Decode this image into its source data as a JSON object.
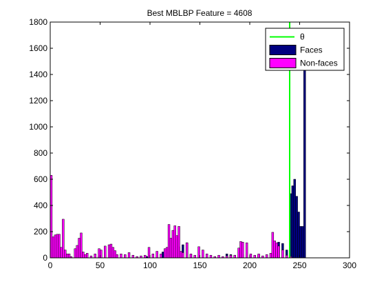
{
  "chart_data": {
    "type": "bar",
    "title": "Best MBLBP Feature = 4608",
    "xlabel": "",
    "ylabel": "",
    "xlim": [
      0,
      300
    ],
    "ylim": [
      0,
      1800
    ],
    "xticks": [
      0,
      50,
      100,
      150,
      200,
      250,
      300
    ],
    "yticks": [
      0,
      200,
      400,
      600,
      800,
      1000,
      1200,
      1400,
      1600,
      1800
    ],
    "grid": false,
    "legend": {
      "location": "top-right",
      "entries": [
        {
          "label": "θ",
          "kind": "line",
          "color": "#00ff00"
        },
        {
          "label": "Faces",
          "kind": "bar",
          "color": "#000080"
        },
        {
          "label": "Non-faces",
          "kind": "bar",
          "color": "#ff00ff"
        }
      ]
    },
    "threshold": {
      "name": "θ",
      "x": 240,
      "color": "#00ff00"
    },
    "series": [
      {
        "name": "Faces",
        "color": "#000080",
        "points": [
          [
            0,
            30
          ],
          [
            16,
            15
          ],
          [
            32,
            20
          ],
          [
            48,
            10
          ],
          [
            64,
            15
          ],
          [
            96,
            10
          ],
          [
            112,
            45
          ],
          [
            116,
            45
          ],
          [
            120,
            55
          ],
          [
            124,
            65
          ],
          [
            128,
            85
          ],
          [
            132,
            100
          ],
          [
            136,
            115
          ],
          [
            140,
            25
          ],
          [
            176,
            30
          ],
          [
            180,
            25
          ],
          [
            184,
            20
          ],
          [
            192,
            25
          ],
          [
            208,
            20
          ],
          [
            224,
            30
          ],
          [
            228,
            120
          ],
          [
            232,
            110
          ],
          [
            236,
            60
          ],
          [
            240,
            490
          ],
          [
            242,
            550
          ],
          [
            244,
            600
          ],
          [
            246,
            470
          ],
          [
            248,
            350
          ],
          [
            250,
            240
          ],
          [
            252,
            240
          ],
          [
            254,
            1450
          ]
        ]
      },
      {
        "name": "Non-faces",
        "color": "#ff00ff",
        "points": [
          [
            0,
            630
          ],
          [
            2,
            160
          ],
          [
            4,
            175
          ],
          [
            6,
            180
          ],
          [
            8,
            180
          ],
          [
            10,
            80
          ],
          [
            12,
            295
          ],
          [
            14,
            60
          ],
          [
            16,
            30
          ],
          [
            18,
            30
          ],
          [
            20,
            10
          ],
          [
            24,
            70
          ],
          [
            26,
            95
          ],
          [
            28,
            150
          ],
          [
            30,
            190
          ],
          [
            32,
            45
          ],
          [
            34,
            25
          ],
          [
            36,
            35
          ],
          [
            40,
            15
          ],
          [
            44,
            30
          ],
          [
            48,
            70
          ],
          [
            50,
            60
          ],
          [
            54,
            90
          ],
          [
            58,
            100
          ],
          [
            60,
            105
          ],
          [
            62,
            80
          ],
          [
            64,
            55
          ],
          [
            66,
            25
          ],
          [
            70,
            30
          ],
          [
            74,
            25
          ],
          [
            78,
            40
          ],
          [
            82,
            20
          ],
          [
            86,
            10
          ],
          [
            90,
            15
          ],
          [
            94,
            20
          ],
          [
            98,
            80
          ],
          [
            102,
            30
          ],
          [
            106,
            50
          ],
          [
            110,
            30
          ],
          [
            114,
            70
          ],
          [
            116,
            80
          ],
          [
            118,
            255
          ],
          [
            120,
            150
          ],
          [
            122,
            210
          ],
          [
            124,
            245
          ],
          [
            126,
            170
          ],
          [
            128,
            240
          ],
          [
            130,
            50
          ],
          [
            132,
            40
          ],
          [
            136,
            115
          ],
          [
            140,
            30
          ],
          [
            144,
            20
          ],
          [
            148,
            85
          ],
          [
            152,
            60
          ],
          [
            156,
            30
          ],
          [
            160,
            20
          ],
          [
            164,
            10
          ],
          [
            168,
            20
          ],
          [
            172,
            10
          ],
          [
            176,
            15
          ],
          [
            180,
            20
          ],
          [
            184,
            20
          ],
          [
            188,
            75
          ],
          [
            190,
            125
          ],
          [
            192,
            120
          ],
          [
            196,
            115
          ],
          [
            200,
            30
          ],
          [
            204,
            20
          ],
          [
            208,
            30
          ],
          [
            212,
            15
          ],
          [
            216,
            25
          ],
          [
            220,
            35
          ],
          [
            222,
            195
          ],
          [
            224,
            130
          ],
          [
            226,
            115
          ],
          [
            228,
            90
          ],
          [
            232,
            60
          ],
          [
            236,
            20
          ],
          [
            240,
            10
          ]
        ]
      }
    ]
  }
}
